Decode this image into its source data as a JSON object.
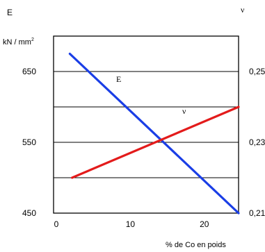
{
  "chart_data": {
    "type": "line",
    "xlabel": "% de Co en poids",
    "left_axis": {
      "symbol": "E",
      "unit_prefix": "kN / mm",
      "unit_exponent": "2",
      "ylim": [
        450,
        700
      ],
      "ticks": [
        450,
        550,
        650
      ],
      "tick_labels": [
        "450",
        "550",
        "650"
      ]
    },
    "right_axis": {
      "symbol": "ν",
      "ylim": [
        0.21,
        0.26
      ],
      "ticks": [
        0.21,
        0.23,
        0.25
      ],
      "tick_labels": [
        "0,21",
        "0,23",
        "0,25"
      ]
    },
    "xlim": [
      0,
      25
    ],
    "xticks": [
      0,
      10,
      20
    ],
    "xtick_labels": [
      "0",
      "10",
      "20"
    ],
    "gridlines_y": [
      500,
      550,
      600,
      650
    ],
    "series": [
      {
        "name": "E",
        "axis": "left",
        "color": "#1a3ee6",
        "x": [
          2.2,
          25
        ],
        "y": [
          675,
          450
        ]
      },
      {
        "name": "ν",
        "axis": "right",
        "color": "#e31b1b",
        "x": [
          2.5,
          25
        ],
        "y": [
          0.22,
          0.24
        ]
      }
    ]
  }
}
